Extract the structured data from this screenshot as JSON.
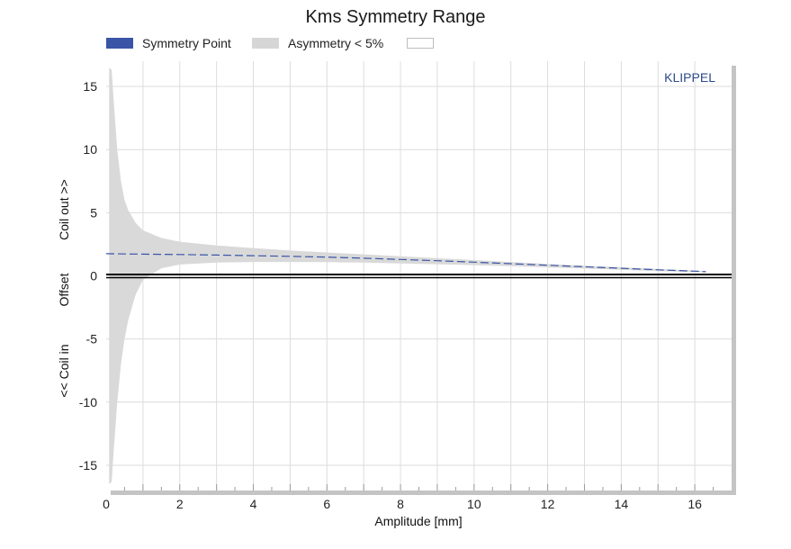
{
  "title": "Kms Symmetry Range",
  "legend": [
    {
      "label": "Symmetry Point",
      "color": "#3a55a6"
    },
    {
      "label": "Asymmetry < 5%",
      "color": "#d6d6d6"
    },
    {
      "label": "",
      "color": "#ffffff"
    }
  ],
  "watermark": "KLIPPEL",
  "colors": {
    "band": "#d9d9d9",
    "symmetry": "#3a55a6",
    "grid": "#dcdcdc",
    "zero_line": "#000000"
  },
  "chart_data": {
    "type": "area",
    "title": "Kms Symmetry Range",
    "xlabel": "Amplitude [mm]",
    "ylabel_parts": [
      "<< Coil in",
      "Offset",
      "Coil out >>"
    ],
    "xlim": [
      0,
      17
    ],
    "ylim": [
      -17,
      17
    ],
    "x_ticks": [
      0,
      2,
      4,
      6,
      8,
      10,
      12,
      14,
      16
    ],
    "y_ticks": [
      -15,
      -10,
      -5,
      0,
      5,
      10,
      15
    ],
    "grid": true,
    "legend_position": "top-left",
    "series": [
      {
        "name": "Symmetry Point",
        "type": "line",
        "x": [
          0,
          1,
          2,
          3,
          4,
          5,
          6,
          7,
          8,
          9,
          10,
          11,
          12,
          13,
          14,
          15,
          16,
          16.3
        ],
        "y": [
          1.75,
          1.72,
          1.69,
          1.65,
          1.6,
          1.55,
          1.48,
          1.4,
          1.3,
          1.2,
          1.08,
          0.96,
          0.84,
          0.72,
          0.6,
          0.48,
          0.37,
          0.33
        ]
      },
      {
        "name": "Asymmetry < 5%",
        "type": "band",
        "x": [
          0.08,
          0.15,
          0.2,
          0.3,
          0.4,
          0.5,
          0.6,
          0.8,
          1,
          1.5,
          2,
          3,
          4,
          5,
          6,
          7,
          8,
          9,
          10,
          11,
          12,
          13,
          14,
          15,
          16,
          16.3
        ],
        "upper": [
          16.5,
          16.3,
          14,
          10,
          7.5,
          6,
          5.2,
          4.2,
          3.6,
          3,
          2.7,
          2.4,
          2.2,
          2,
          1.85,
          1.7,
          1.55,
          1.4,
          1.25,
          1.1,
          0.95,
          0.8,
          0.68,
          0.55,
          0.42,
          0.38
        ],
        "lower": [
          -16.5,
          -16.3,
          -14,
          -10,
          -7,
          -5,
          -3.5,
          -1.5,
          -0.3,
          0.6,
          0.9,
          1.05,
          1.1,
          1.1,
          1.08,
          1.05,
          0.98,
          0.92,
          0.85,
          0.76,
          0.67,
          0.58,
          0.48,
          0.38,
          0.3,
          0.28
        ]
      }
    ]
  }
}
